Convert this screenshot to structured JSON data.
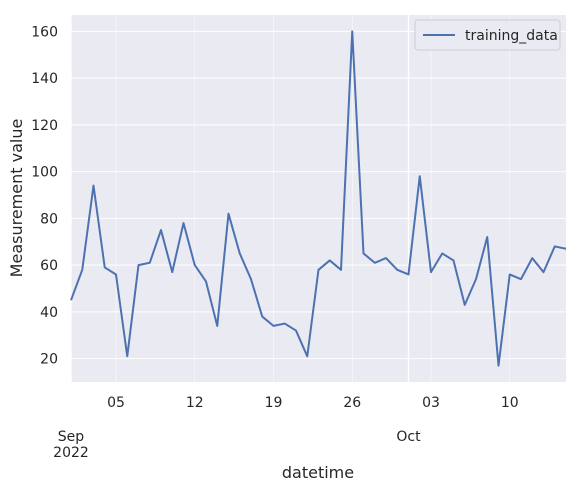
{
  "chart_data": {
    "type": "line",
    "title": "",
    "xlabel": "datetime",
    "ylabel": "Measurement value",
    "grid": true,
    "legend_position": "top-right",
    "x": [
      "2022-09-01",
      "2022-09-02",
      "2022-09-03",
      "2022-09-04",
      "2022-09-05",
      "2022-09-06",
      "2022-09-07",
      "2022-09-08",
      "2022-09-09",
      "2022-09-10",
      "2022-09-11",
      "2022-09-12",
      "2022-09-13",
      "2022-09-14",
      "2022-09-15",
      "2022-09-16",
      "2022-09-17",
      "2022-09-18",
      "2022-09-19",
      "2022-09-20",
      "2022-09-21",
      "2022-09-22",
      "2022-09-23",
      "2022-09-24",
      "2022-09-25",
      "2022-09-26",
      "2022-09-27",
      "2022-09-28",
      "2022-09-29",
      "2022-09-30",
      "2022-10-01",
      "2022-10-02",
      "2022-10-03",
      "2022-10-04",
      "2022-10-05",
      "2022-10-06",
      "2022-10-07",
      "2022-10-08",
      "2022-10-09",
      "2022-10-10",
      "2022-10-11",
      "2022-10-12",
      "2022-10-13",
      "2022-10-14",
      "2022-10-15"
    ],
    "series": [
      {
        "name": "training_data",
        "color": "#4c72b0",
        "values": [
          45,
          58,
          94,
          59,
          56,
          21,
          60,
          61,
          75,
          57,
          78,
          60,
          53,
          34,
          82,
          65,
          54,
          38,
          34,
          35,
          32,
          21,
          58,
          62,
          58,
          160,
          65,
          61,
          63,
          58,
          56,
          98,
          57,
          65,
          62,
          43,
          54,
          72,
          17,
          56,
          54,
          63,
          57,
          68,
          67
        ]
      }
    ],
    "xlim": [
      "2022-09-01",
      "2022-10-15"
    ],
    "ylim": [
      10,
      167
    ],
    "y_ticks": [
      20,
      40,
      60,
      80,
      100,
      120,
      140,
      160
    ],
    "x_minor_ticks": [
      {
        "date": "2022-09-05",
        "label": "05"
      },
      {
        "date": "2022-09-12",
        "label": "12"
      },
      {
        "date": "2022-09-19",
        "label": "19"
      },
      {
        "date": "2022-09-26",
        "label": "26"
      },
      {
        "date": "2022-10-03",
        "label": "03"
      },
      {
        "date": "2022-10-10",
        "label": "10"
      }
    ],
    "x_major_ticks": [
      {
        "date": "2022-09-01",
        "label": "Sep",
        "sublabel": "2022"
      },
      {
        "date": "2022-10-01",
        "label": "Oct",
        "sublabel": ""
      }
    ],
    "background_color": "#eaeaf2",
    "grid_color": "#ffffff"
  }
}
